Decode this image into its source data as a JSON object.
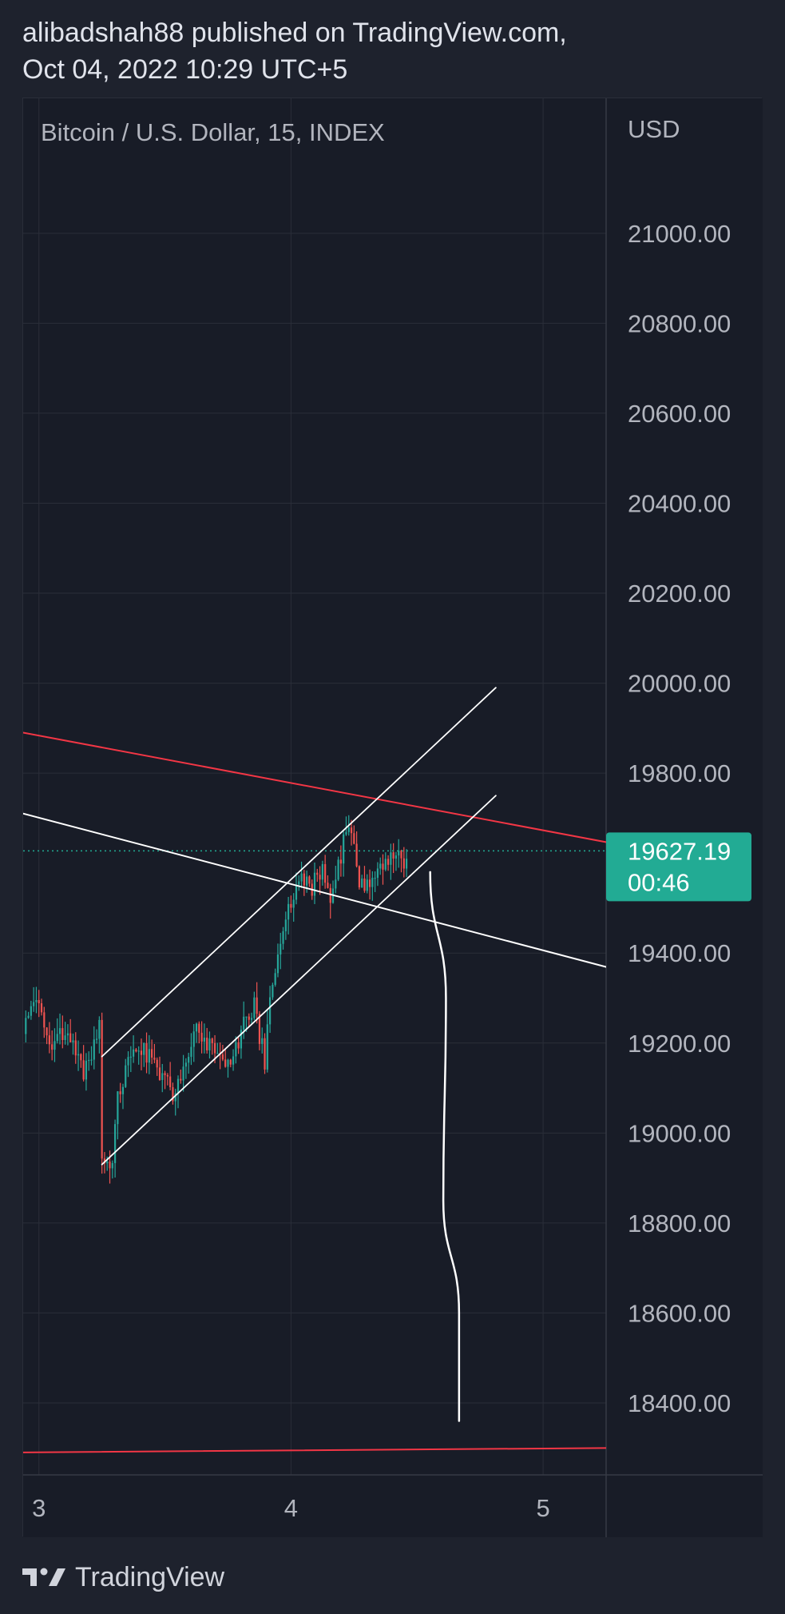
{
  "header": {
    "line1": "alibadshah88 published on TradingView.com,",
    "line2": "Oct 04, 2022 10:29 UTC+5"
  },
  "colors": {
    "background": "#1e222d",
    "plot_background": "#181c27",
    "grid": "#2a2e39",
    "text": "#b2b5be",
    "up": "#26a69a",
    "down": "#ef5350",
    "red_line": "#f23645",
    "price_badge": "#22ab94",
    "drawing": "#ffffff"
  },
  "footer": {
    "brand": "TradingView",
    "logo_icon": "tradingview-logo-icon"
  },
  "chart_data": {
    "type": "candlestick",
    "title": "Bitcoin / U.S. Dollar, 15, INDEX",
    "currency_label": "USD",
    "y_ticks": [
      21000,
      20800,
      20600,
      20400,
      20200,
      20000,
      19800,
      19400,
      19200,
      19000,
      18800,
      18600,
      18400
    ],
    "y_tick_labels": [
      "21000.00",
      "20800.00",
      "20600.00",
      "20400.00",
      "20200.00",
      "20000.00",
      "19800.00",
      "19400.00",
      "19200.00",
      "19000.00",
      "18800.00",
      "18600.00",
      "18400.00"
    ],
    "ylim": [
      18240,
      21300
    ],
    "x_tick_labels": [
      "3",
      "4",
      "5"
    ],
    "x_tick_values": [
      0,
      96,
      192
    ],
    "xlim": [
      -6,
      216
    ],
    "last_price": "19627.19",
    "countdown": "00:46",
    "last_price_value": 19627.19,
    "grid": true,
    "close_path": [
      [
        -6,
        19220
      ],
      [
        -1,
        19290
      ],
      [
        4,
        19180
      ],
      [
        10,
        19240
      ],
      [
        17,
        19140
      ],
      [
        23,
        19230
      ],
      [
        24,
        18960
      ],
      [
        28,
        18940
      ],
      [
        30,
        19080
      ],
      [
        35,
        19170
      ],
      [
        40,
        19190
      ],
      [
        46,
        19130
      ],
      [
        52,
        19080
      ],
      [
        56,
        19160
      ],
      [
        60,
        19230
      ],
      [
        66,
        19190
      ],
      [
        72,
        19140
      ],
      [
        77,
        19230
      ],
      [
        82,
        19280
      ],
      [
        86,
        19160
      ],
      [
        88,
        19310
      ],
      [
        92,
        19420
      ],
      [
        96,
        19520
      ],
      [
        100,
        19580
      ],
      [
        103,
        19540
      ],
      [
        108,
        19600
      ],
      [
        111,
        19520
      ],
      [
        118,
        19700
      ],
      [
        122,
        19560
      ],
      [
        126,
        19540
      ],
      [
        130,
        19580
      ],
      [
        136,
        19610
      ],
      [
        140,
        19610
      ]
    ],
    "drawings": {
      "red_upper_line": [
        [
          -6,
          19890
        ],
        [
          222,
          19640
        ]
      ],
      "red_lower_line": [
        [
          -6,
          18290
        ],
        [
          222,
          18300
        ]
      ],
      "white_descending_line": [
        [
          -6,
          19710
        ],
        [
          222,
          19360
        ]
      ],
      "channel_upper_line": [
        [
          24,
          19170
        ],
        [
          174,
          19990
        ]
      ],
      "channel_lower_line": [
        [
          24,
          18930
        ],
        [
          174,
          19750
        ]
      ],
      "projection_curve": [
        [
          149,
          19580
        ],
        [
          155,
          19300
        ],
        [
          154,
          18850
        ],
        [
          160,
          18600
        ],
        [
          160,
          18360
        ]
      ]
    }
  }
}
